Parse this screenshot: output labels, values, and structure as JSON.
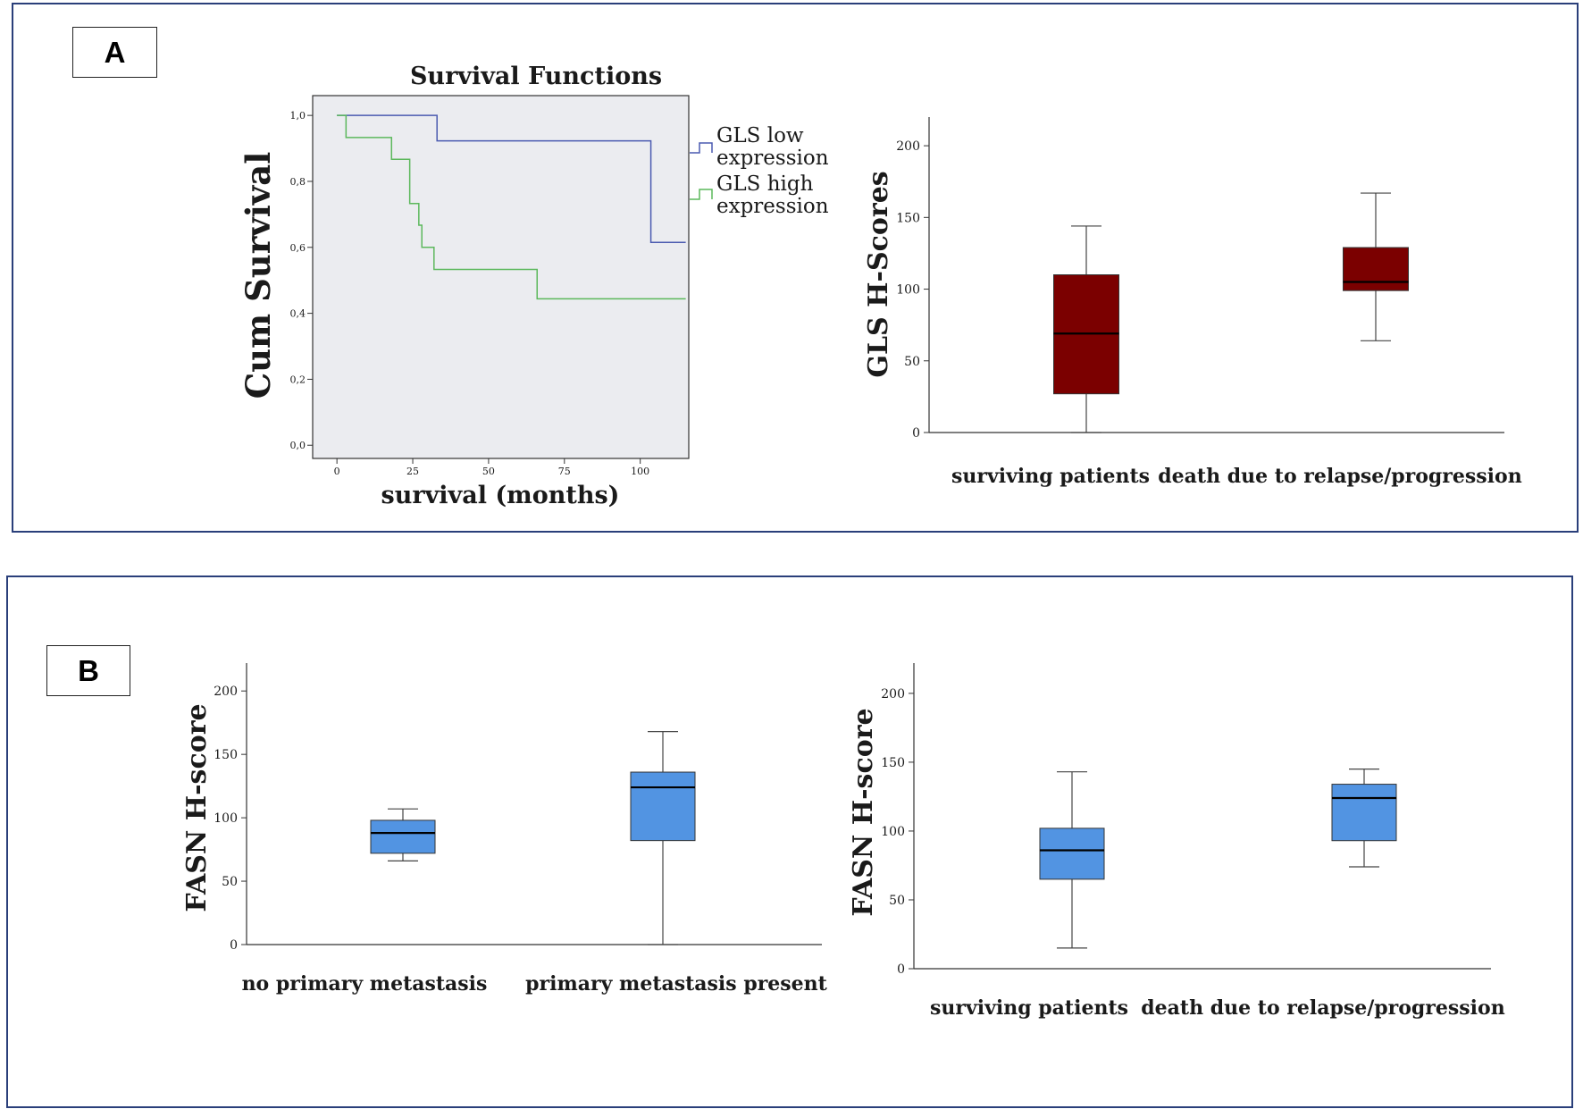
{
  "panels": [
    {
      "letter": "A"
    },
    {
      "letter": "B"
    }
  ],
  "colors": {
    "frame": "#2a3f7a",
    "km_low": "#4a5ab0",
    "km_high": "#5cb85c",
    "km_bg": "#ebecf0",
    "box_dark_red": "#7b0000",
    "box_blue": "#5294e2"
  },
  "chart_data": [
    {
      "type": "line",
      "chart_id": "km",
      "title": "Survival Functions",
      "xlabel": "survival (months)",
      "ylabel": "Cum Survival",
      "xlim": [
        -8,
        116
      ],
      "ylim": [
        -0.04,
        1.06
      ],
      "xticks": [
        "0",
        "25",
        "50",
        "75",
        "100"
      ],
      "xtick_values": [
        0,
        25,
        50,
        75,
        100
      ],
      "yticks": [
        "0,0",
        "0,2",
        "0,4",
        "0,6",
        "0,8",
        "1,0"
      ],
      "ytick_values": [
        0,
        0.2,
        0.4,
        0.6,
        0.8,
        1.0
      ],
      "series": [
        {
          "name": "GLS low expression",
          "legend_lines": [
            "GLS low",
            "expression"
          ],
          "color": "#4a5ab0",
          "steps": [
            [
              0,
              1.0
            ],
            [
              33,
              0.923
            ],
            [
              103.5,
              0.615
            ],
            [
              115,
              0.615
            ]
          ]
        },
        {
          "name": "GLS high expression",
          "legend_lines": [
            "GLS high",
            "expression"
          ],
          "color": "#5cb85c",
          "steps": [
            [
              0,
              1.0
            ],
            [
              3,
              0.933
            ],
            [
              18,
              0.867
            ],
            [
              24,
              0.733
            ],
            [
              27,
              0.667
            ],
            [
              28,
              0.6
            ],
            [
              32,
              0.533
            ],
            [
              66,
              0.444
            ],
            [
              115,
              0.444
            ]
          ]
        }
      ]
    },
    {
      "type": "box",
      "chart_id": "gls-box",
      "ylabel": "GLS H-Scores",
      "ylim": [
        0,
        220
      ],
      "yticks": [
        "0",
        "50",
        "100",
        "150",
        "200"
      ],
      "ytick_values": [
        0,
        50,
        100,
        150,
        200
      ],
      "color": "#7b0000",
      "categories": [
        "surviving patients",
        "death due to relapse/progression"
      ],
      "boxes": [
        {
          "min": 0,
          "q1": 27,
          "median": 69,
          "q3": 110,
          "max": 144
        },
        {
          "min": 64,
          "q1": 99,
          "median": 105,
          "q3": 129,
          "max": 167
        }
      ]
    },
    {
      "type": "box",
      "chart_id": "fasn-metastasis-box",
      "ylabel": "FASN H-score",
      "ylim": [
        0,
        222
      ],
      "yticks": [
        "0",
        "50",
        "100",
        "150",
        "200"
      ],
      "ytick_values": [
        0,
        50,
        100,
        150,
        200
      ],
      "color": "#5294e2",
      "categories": [
        "no primary metastasis",
        "primary metastasis present"
      ],
      "boxes": [
        {
          "min": 66,
          "q1": 72,
          "median": 88,
          "q3": 98,
          "max": 107
        },
        {
          "min": 0,
          "q1": 82,
          "median": 124,
          "q3": 136,
          "max": 168
        }
      ]
    },
    {
      "type": "box",
      "chart_id": "fasn-survival-box",
      "ylabel": "FASN H-score",
      "ylim": [
        0,
        222
      ],
      "yticks": [
        "0",
        "50",
        "100",
        "150",
        "200"
      ],
      "ytick_values": [
        0,
        50,
        100,
        150,
        200
      ],
      "color": "#5294e2",
      "categories": [
        "surviving patients",
        "death due to relapse/progression"
      ],
      "boxes": [
        {
          "min": 15,
          "q1": 65,
          "median": 86,
          "q3": 102,
          "max": 143
        },
        {
          "min": 74,
          "q1": 93,
          "median": 124,
          "q3": 134,
          "max": 145
        }
      ]
    }
  ]
}
